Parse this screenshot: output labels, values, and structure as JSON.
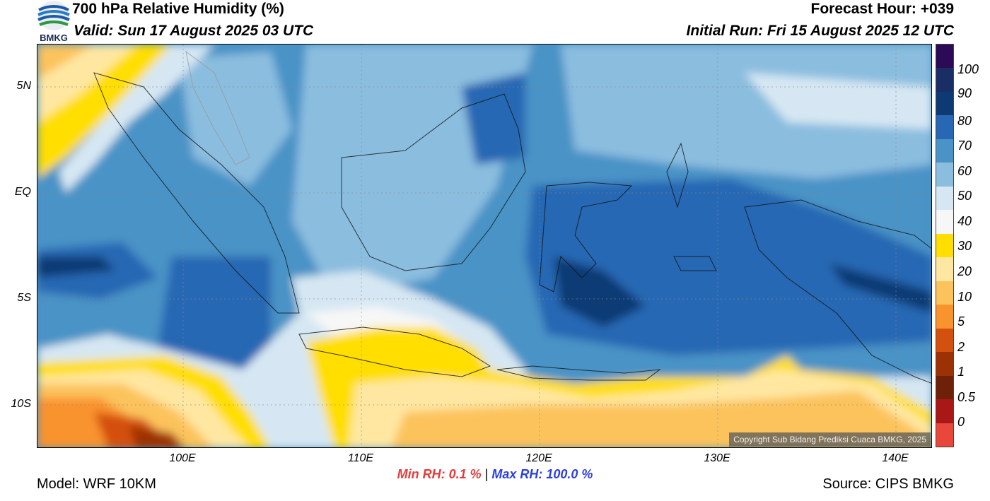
{
  "header": {
    "title": "700 hPa Relative Humidity (%)",
    "valid": "Valid: Sun 17 August 2025 03 UTC",
    "forecast_hour": "Forecast Hour: +039",
    "initial_run": "Initial Run: Fri 15 August 2025 12 UTC",
    "logo_text": "BMKG"
  },
  "map": {
    "lat_labels": [
      "5N",
      "EQ",
      "5S",
      "10S"
    ],
    "lon_labels": [
      "100E",
      "110E",
      "120E",
      "130E",
      "140E"
    ],
    "copyright": "Copyright Sub Bidang Prediksi Cuaca BMKG, 2025"
  },
  "colorbar": {
    "labels": [
      "100",
      "90",
      "80",
      "70",
      "60",
      "50",
      "40",
      "30",
      "20",
      "10",
      "5",
      "2",
      "1",
      "0.5",
      "0"
    ],
    "colors": [
      "#2d0a55",
      "#1a2e66",
      "#0e3a74",
      "#2767b3",
      "#4a93c6",
      "#8bbddf",
      "#d6e7f3",
      "#f7f7f7",
      "#ffde00",
      "#ffe7a2",
      "#fcc35c",
      "#f9932e",
      "#d4500e",
      "#9c3106",
      "#6c2108",
      "#aa1717",
      "#e8473b"
    ]
  },
  "footer": {
    "min_rh": "Min RH:   0.1 %",
    "separator": "|",
    "max_rh": "Max RH: 100.0 %",
    "model": "Model: WRF 10KM",
    "source": "Source: CIPS BMKG"
  }
}
